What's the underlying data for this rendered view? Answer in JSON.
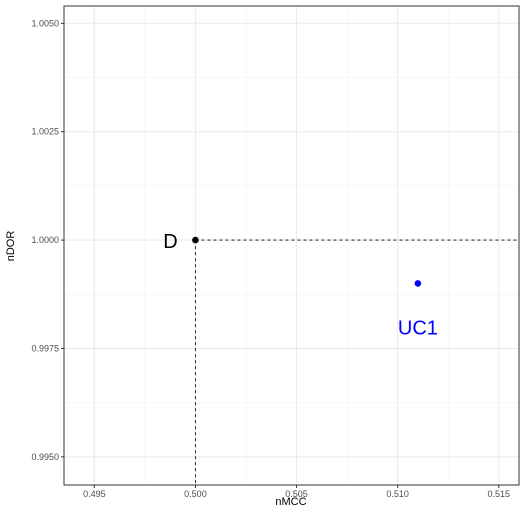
{
  "chart_data": {
    "type": "scatter",
    "xlabel": "nMCC",
    "ylabel": "nDOR",
    "xlim": [
      0.4935,
      0.516
    ],
    "ylim": [
      0.99435,
      1.0054
    ],
    "x_ticks": [
      "0.495",
      "0.500",
      "0.505",
      "0.510",
      "0.515"
    ],
    "x_tick_values": [
      0.495,
      0.5,
      0.505,
      0.51,
      0.515
    ],
    "y_ticks": [
      "0.9950",
      "0.9975",
      "1.0000",
      "1.0025",
      "1.0050"
    ],
    "y_tick_values": [
      0.995,
      0.9975,
      1.0,
      1.0025,
      1.005
    ],
    "grid": true,
    "points": [
      {
        "label": "D",
        "x": 0.5,
        "y": 1.0,
        "color": "#000000"
      },
      {
        "label": "UC1",
        "x": 0.511,
        "y": 0.999,
        "color": "#0000ff"
      }
    ],
    "reference_lines": {
      "x": 0.5,
      "y": 1.0,
      "style": "dashed"
    }
  }
}
